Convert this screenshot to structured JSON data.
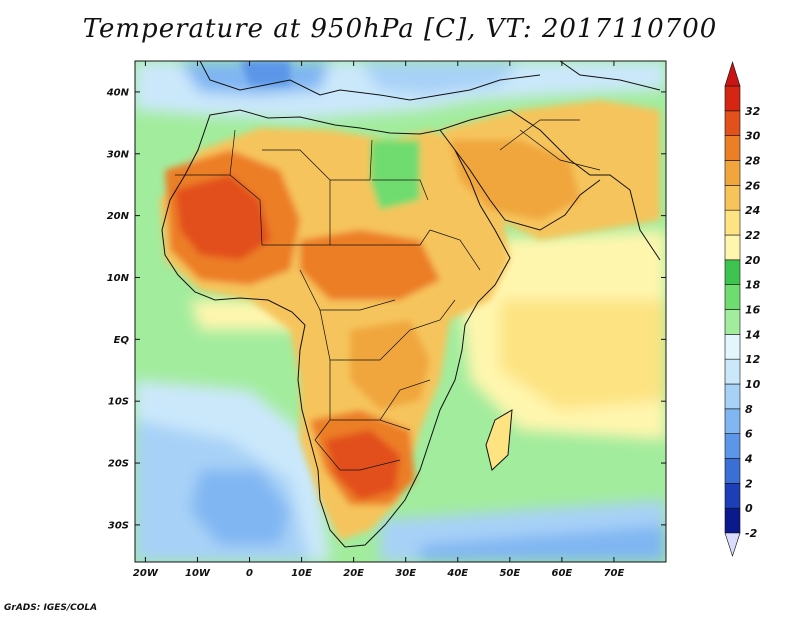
{
  "title": "Temperature at 950hPa [C], VT: 2017110700",
  "credit": "GrADS: IGES/COLA",
  "map": {
    "variable": "Temperature",
    "level": "950hPa",
    "units": "C",
    "valid_time": "2017110700",
    "lon_range": [
      -22,
      80
    ],
    "lat_range": [
      -36,
      45
    ],
    "lat_ticks": [
      "40N",
      "30N",
      "20N",
      "10N",
      "EQ",
      "10S",
      "20S",
      "30S"
    ],
    "lon_ticks": [
      "20W",
      "10W",
      "0",
      "10E",
      "20E",
      "30E",
      "40E",
      "50E",
      "60E",
      "70E"
    ],
    "colorbar": {
      "labels": [
        "-2",
        "0",
        "2",
        "4",
        "6",
        "8",
        "10",
        "12",
        "14",
        "16",
        "18",
        "20",
        "22",
        "24",
        "26",
        "28",
        "30",
        "32"
      ],
      "colors": [
        "#0a1a8c",
        "#1c3fb8",
        "#3a6fd6",
        "#5c96e8",
        "#80b6f2",
        "#a7d1f7",
        "#cbe8fb",
        "#e3f6fb",
        "#a2ec9d",
        "#6fdc70",
        "#3fc350",
        "#fff6ae",
        "#fde382",
        "#f6c45b",
        "#f0a63c",
        "#ec7e26",
        "#e2501b",
        "#d62613"
      ],
      "under_color": "#dcdcff",
      "over_color": "#c81414"
    }
  }
}
